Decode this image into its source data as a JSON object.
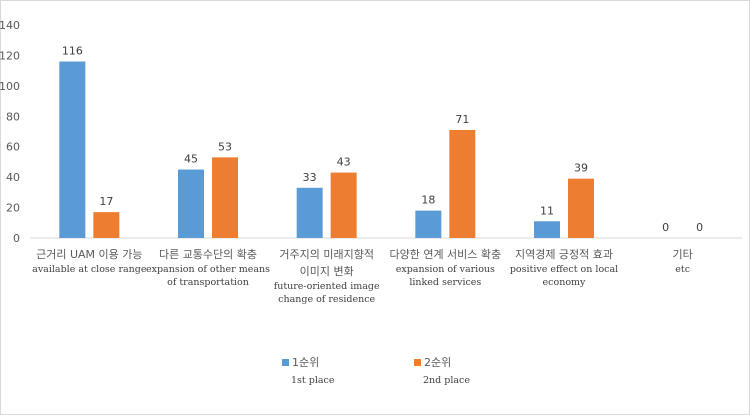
{
  "chart_data": {
    "type": "bar",
    "ylim": [
      0,
      140
    ],
    "yticks": [
      0,
      20,
      40,
      60,
      80,
      100,
      120,
      140
    ],
    "grid": false,
    "legend_position": "bottom",
    "categories": [
      {
        "ko": [
          "근거리 UAM 이용 가능"
        ],
        "en": [
          "available  at close range"
        ]
      },
      {
        "ko": [
          "다른 교통수단의 확충"
        ],
        "en": [
          "expansion  of other means",
          "of transportation"
        ]
      },
      {
        "ko": [
          "거주지의 미래지향적",
          "이미지 변화"
        ],
        "en": [
          "future-oriented  image",
          "change  of residence"
        ]
      },
      {
        "ko": [
          "다양한 연계 서비스 확충"
        ],
        "en": [
          "expansion  of various",
          "linked  services"
        ]
      },
      {
        "ko": [
          "지역경제 긍정적 효과"
        ],
        "en": [
          "positive  effect  on local",
          "economy"
        ]
      },
      {
        "ko": [
          "기타"
        ],
        "en": [
          "etc"
        ]
      }
    ],
    "series": [
      {
        "name_ko": "1순위",
        "name_en": "1st place",
        "color": "#5b9bd5",
        "values": [
          116,
          45,
          33,
          18,
          11,
          0
        ]
      },
      {
        "name_ko": "2순위",
        "name_en": "2nd place",
        "color": "#ed7d31",
        "values": [
          17,
          53,
          43,
          71,
          39,
          0
        ]
      }
    ]
  }
}
